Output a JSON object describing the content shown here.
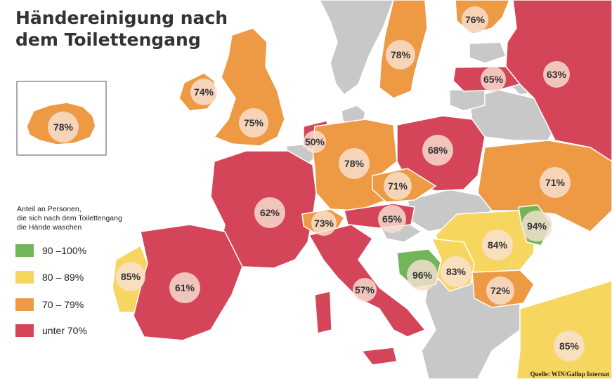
{
  "title": {
    "line1": "Händereinigung nach",
    "line2": "dem Toilettengang"
  },
  "legend": {
    "title_lines": [
      "Anteil an Personen,",
      "die sich nach dem Toilettengang",
      "die Hände waschen"
    ],
    "items": [
      {
        "label": "90 –100%",
        "color": "#72b65a"
      },
      {
        "label": "80 – 89%",
        "color": "#f7d660"
      },
      {
        "label": "70 – 79%",
        "color": "#ee9a45"
      },
      {
        "label": "unter 70%",
        "color": "#d4455a"
      }
    ]
  },
  "colors": {
    "no_data": "#c8c8c8",
    "sea": "#ffffff",
    "border": "#ffffff",
    "circle": "#f8e0d2"
  },
  "map": {
    "regions": [
      {
        "name": "island",
        "label": "78%",
        "category": "70-79"
      },
      {
        "name": "ireland",
        "label": "74%",
        "category": "70-79"
      },
      {
        "name": "united-kingdom",
        "label": "75%",
        "category": "70-79"
      },
      {
        "name": "sweden",
        "label": "78%",
        "category": "70-79"
      },
      {
        "name": "finland",
        "label": "76%",
        "category": "70-79"
      },
      {
        "name": "russia",
        "label": "63%",
        "category": "unter-70"
      },
      {
        "name": "latvia",
        "label": "65%",
        "category": "unter-70"
      },
      {
        "name": "netherlands",
        "label": "50%",
        "category": "unter-70"
      },
      {
        "name": "germany",
        "label": "78%",
        "category": "70-79"
      },
      {
        "name": "poland",
        "label": "68%",
        "category": "unter-70"
      },
      {
        "name": "czech-republic",
        "label": "71%",
        "category": "70-79"
      },
      {
        "name": "ukraine",
        "label": "71%",
        "category": "70-79"
      },
      {
        "name": "france",
        "label": "62%",
        "category": "unter-70"
      },
      {
        "name": "switzerland",
        "label": "73%",
        "category": "70-79"
      },
      {
        "name": "austria",
        "label": "65%",
        "category": "unter-70"
      },
      {
        "name": "moldova",
        "label": "94%",
        "category": "90-100"
      },
      {
        "name": "romania",
        "label": "84%",
        "category": "80-89"
      },
      {
        "name": "portugal",
        "label": "85%",
        "category": "80-89"
      },
      {
        "name": "spain",
        "label": "61%",
        "category": "unter-70"
      },
      {
        "name": "italy",
        "label": "57%",
        "category": "unter-70"
      },
      {
        "name": "bosnia",
        "label": "96%",
        "category": "90-100"
      },
      {
        "name": "serbia",
        "label": "83%",
        "category": "80-89"
      },
      {
        "name": "bulgaria",
        "label": "72%",
        "category": "70-79"
      },
      {
        "name": "turkey",
        "label": "85%",
        "category": "80-89"
      }
    ]
  },
  "source": "Quelle: WIN/Gallup Internat"
}
